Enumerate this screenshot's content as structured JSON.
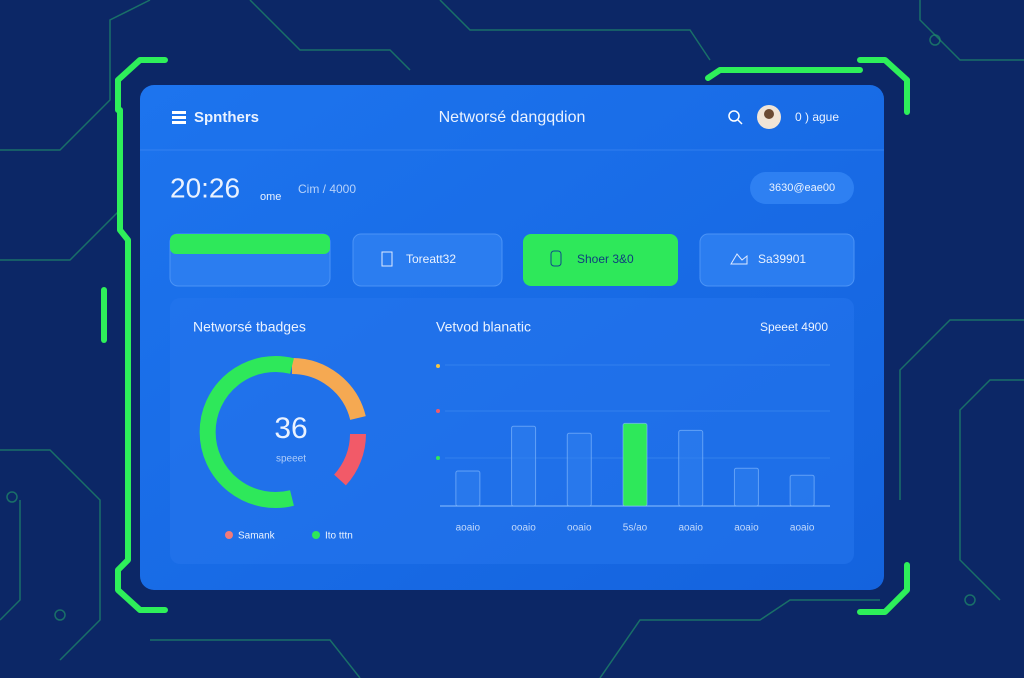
{
  "header": {
    "brand": "Spnthers",
    "title": "Networsé dangqdion",
    "user": "0 ) ague"
  },
  "status": {
    "time": "20:26",
    "time_unit": "ome",
    "detail": "Cim / 4000",
    "badge": "3630@eae00"
  },
  "tabs": [
    "Toreatt32",
    "Shoer 3&0",
    "Sa39901"
  ],
  "gauge_panel": {
    "title": "Networsé tbadges",
    "value": "36",
    "label": "speeet",
    "legend": [
      "Samank",
      "Ito tttn"
    ]
  },
  "chart_data": {
    "type": "bar",
    "title": "Vetvod blanatic",
    "subtitle": "Speeet 4900",
    "categories": [
      "aoaio",
      "ooaio",
      "ooaio",
      "5s/ao",
      "aoaio",
      "aoaio",
      "aoaio"
    ],
    "values": [
      25,
      57,
      52,
      59,
      54,
      27,
      22
    ],
    "colors": [
      "#2f7fee",
      "#2f7fee",
      "#2f7fee",
      "#2ee85a",
      "#2f7fee",
      "#2f7fee",
      "#2f7fee"
    ],
    "ylim": [
      0,
      100
    ]
  }
}
